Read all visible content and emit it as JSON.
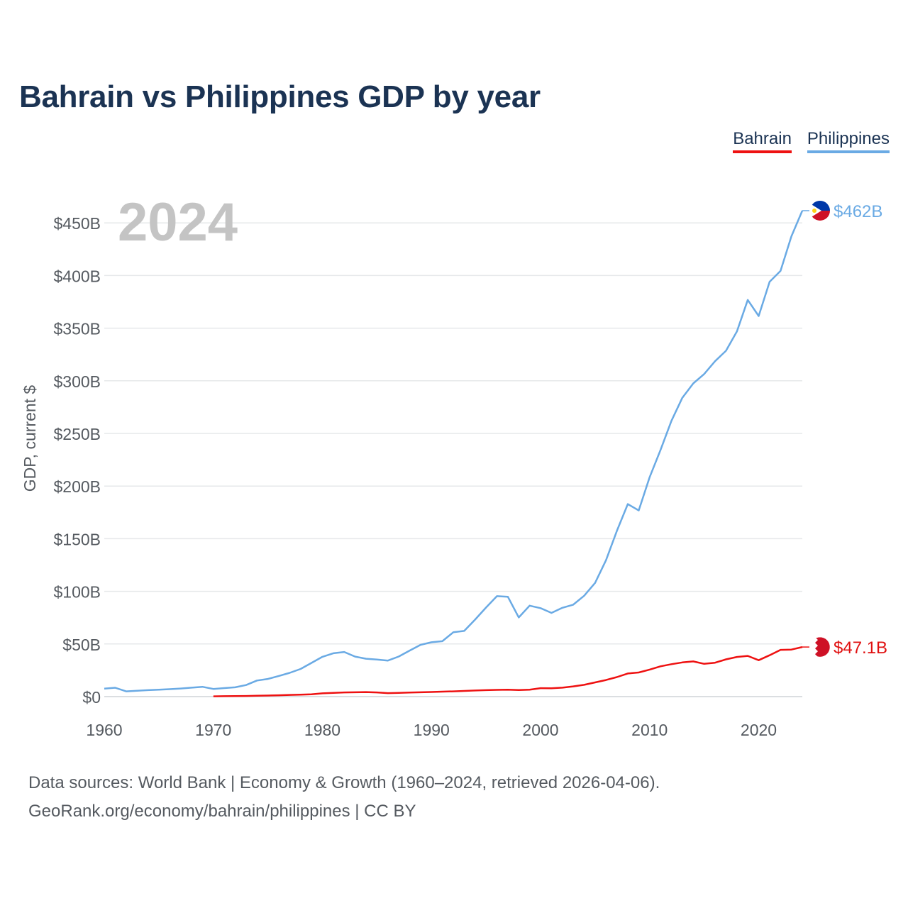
{
  "title": "Bahrain vs Philippines GDP by year",
  "legend": [
    {
      "label": "Bahrain",
      "color": "#ee1111"
    },
    {
      "label": "Philippines",
      "color": "#6aaae4"
    }
  ],
  "footer": {
    "line1": "Data sources: World Bank | Economy & Growth (1960–2024, retrieved 2026-04-06).",
    "line2": "GeoRank.org/economy/bahrain/philippines | CC BY"
  },
  "chart_data": {
    "type": "line",
    "title": "Bahrain vs Philippines GDP by year",
    "xlabel": "",
    "ylabel": "GDP, current $",
    "year_label": "2024",
    "xlim": [
      1960,
      2024
    ],
    "ylim": [
      0,
      460
    ],
    "x_ticks": [
      1960,
      1970,
      1980,
      1990,
      2000,
      2010,
      2020
    ],
    "y_ticks": [
      {
        "value": 0,
        "label": "$0"
      },
      {
        "value": 50,
        "label": "$50B"
      },
      {
        "value": 100,
        "label": "$100B"
      },
      {
        "value": 150,
        "label": "$150B"
      },
      {
        "value": 200,
        "label": "$200B"
      },
      {
        "value": 250,
        "label": "$250B"
      },
      {
        "value": 300,
        "label": "$300B"
      },
      {
        "value": 350,
        "label": "$350B"
      },
      {
        "value": 400,
        "label": "$400B"
      },
      {
        "value": 450,
        "label": "$450B"
      }
    ],
    "grid": true,
    "legend_position": "top-right",
    "series": [
      {
        "name": "Philippines",
        "color": "#6aaae4",
        "end_label": "$462B",
        "flag": "philippines",
        "x": [
          1960,
          1961,
          1962,
          1963,
          1964,
          1965,
          1966,
          1967,
          1968,
          1969,
          1970,
          1971,
          1972,
          1973,
          1974,
          1975,
          1976,
          1977,
          1978,
          1979,
          1980,
          1981,
          1982,
          1983,
          1984,
          1985,
          1986,
          1987,
          1988,
          1989,
          1990,
          1991,
          1992,
          1993,
          1994,
          1995,
          1996,
          1997,
          1998,
          1999,
          2000,
          2001,
          2002,
          2003,
          2004,
          2005,
          2006,
          2007,
          2008,
          2009,
          2010,
          2011,
          2012,
          2013,
          2014,
          2015,
          2016,
          2017,
          2018,
          2019,
          2020,
          2021,
          2022,
          2023,
          2024
        ],
        "values": [
          7.6,
          8.4,
          5.0,
          5.6,
          6.1,
          6.6,
          7.1,
          7.7,
          8.5,
          9.3,
          7.3,
          8.1,
          8.8,
          11.0,
          15.3,
          16.8,
          19.6,
          22.6,
          26.3,
          32.0,
          37.8,
          41.2,
          42.4,
          38.0,
          36.0,
          35.2,
          34.2,
          38.1,
          43.7,
          49.2,
          51.6,
          52.6,
          61.1,
          62.4,
          73.2,
          84.6,
          95.4,
          94.9,
          75.2,
          86.4,
          84.0,
          79.5,
          84.4,
          87.3,
          95.8,
          108.0,
          129.6,
          157.4,
          182.9,
          176.8,
          208.4,
          234.2,
          261.9,
          283.9,
          297.5,
          306.4,
          318.6,
          328.5,
          346.8,
          376.8,
          361.5,
          394.1,
          404.4,
          437.1,
          461.6
        ]
      },
      {
        "name": "Bahrain",
        "color": "#ee1111",
        "end_label": "$47.1B",
        "flag": "bahrain",
        "x": [
          1970,
          1971,
          1972,
          1973,
          1974,
          1975,
          1976,
          1977,
          1978,
          1979,
          1980,
          1981,
          1982,
          1983,
          1984,
          1985,
          1986,
          1987,
          1988,
          1989,
          1990,
          1991,
          1992,
          1993,
          1994,
          1995,
          1996,
          1997,
          1998,
          1999,
          2000,
          2001,
          2002,
          2003,
          2004,
          2005,
          2006,
          2007,
          2008,
          2009,
          2010,
          2011,
          2012,
          2013,
          2014,
          2015,
          2016,
          2017,
          2018,
          2019,
          2020,
          2021,
          2022,
          2023,
          2024
        ],
        "values": [
          0.3,
          0.4,
          0.5,
          0.6,
          0.8,
          1.0,
          1.3,
          1.6,
          1.9,
          2.2,
          3.1,
          3.6,
          4.0,
          4.1,
          4.3,
          4.0,
          3.3,
          3.6,
          3.9,
          4.1,
          4.4,
          4.7,
          5.0,
          5.4,
          5.8,
          6.1,
          6.4,
          6.6,
          6.2,
          6.6,
          8.0,
          7.9,
          8.5,
          9.7,
          11.2,
          13.5,
          15.8,
          18.5,
          22.0,
          22.9,
          25.7,
          28.8,
          30.8,
          32.5,
          33.4,
          31.1,
          32.2,
          35.4,
          37.7,
          38.7,
          34.6,
          39.3,
          44.4,
          44.7,
          47.1
        ]
      }
    ]
  }
}
